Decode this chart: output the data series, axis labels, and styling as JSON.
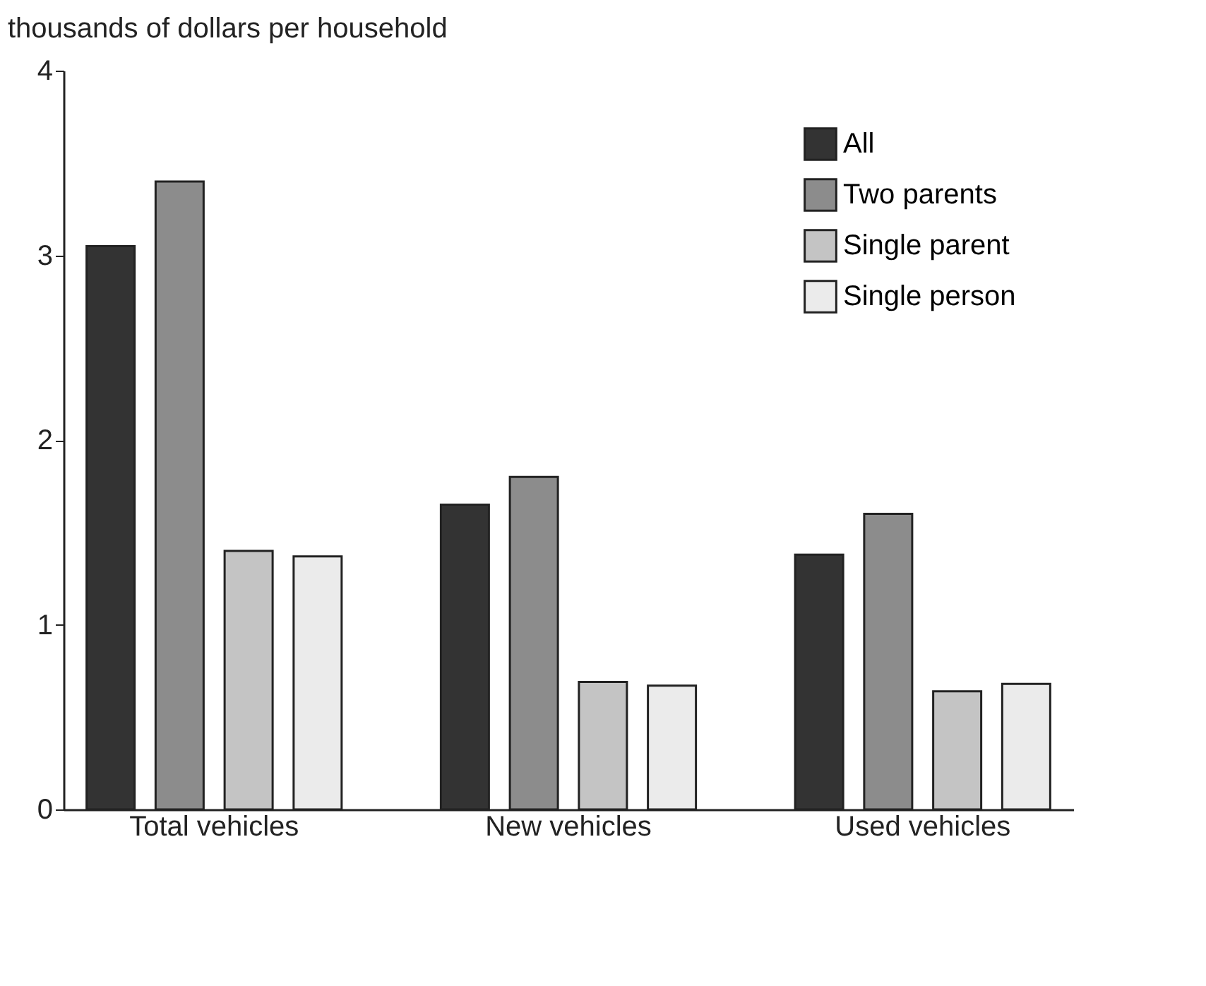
{
  "chart_data": {
    "type": "bar",
    "ylabel": "thousands of dollars per household",
    "categories": [
      "Total vehicles",
      "New vehicles",
      "Used vehicles"
    ],
    "series": [
      {
        "name": "All",
        "color": "#333333",
        "values": [
          3.05,
          1.65,
          1.38
        ]
      },
      {
        "name": "Two parents",
        "color": "#8c8c8c",
        "values": [
          3.4,
          1.8,
          1.6
        ]
      },
      {
        "name": "Single parent",
        "color": "#c4c4c4",
        "values": [
          1.4,
          0.69,
          0.64
        ]
      },
      {
        "name": "Single person",
        "color": "#ebebeb",
        "values": [
          1.37,
          0.67,
          0.68
        ]
      }
    ],
    "ylim": [
      0,
      4
    ],
    "yticks": [
      0,
      1,
      2,
      3,
      4
    ],
    "grid": false,
    "legend": "top right"
  }
}
